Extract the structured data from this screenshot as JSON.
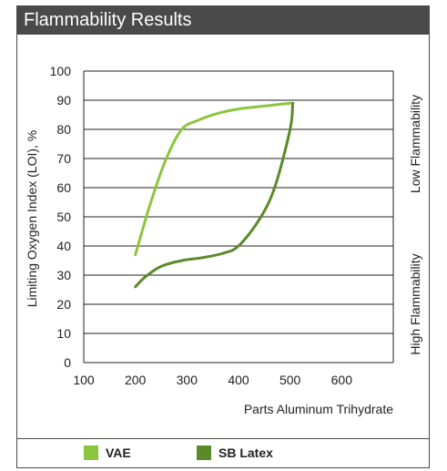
{
  "title": "Flammability Results",
  "colors": {
    "header_bg": "#4a4a4a",
    "vae": "#8cc63f",
    "sb_latex": "#5a8a2a",
    "gridline": "#222222"
  },
  "legend": [
    {
      "label": "VAE",
      "color": "#8cc63f"
    },
    {
      "label": "SB Latex",
      "color": "#5a8a2a"
    }
  ],
  "chart_data": {
    "type": "line",
    "title": "Flammability Results",
    "xlabel": "Parts Aluminum Trihydrate",
    "ylabel": "Limiting Oxygen Index (LOI), %",
    "xlim": [
      100,
      700
    ],
    "ylim": [
      0,
      100
    ],
    "x_ticks": [
      100,
      200,
      300,
      400,
      500,
      600
    ],
    "y_ticks": [
      0,
      10,
      20,
      30,
      40,
      50,
      60,
      70,
      80,
      90,
      100
    ],
    "grid": "horizontal",
    "legend_position": "bottom",
    "right_annotations": [
      "Low Flammability",
      "High Flammability"
    ],
    "series": [
      {
        "name": "VAE",
        "color": "#8cc63f",
        "points": [
          [
            200,
            37
          ],
          [
            230,
            55
          ],
          [
            260,
            70
          ],
          [
            290,
            80
          ],
          [
            320,
            83
          ],
          [
            360,
            85.5
          ],
          [
            400,
            87
          ],
          [
            450,
            88
          ],
          [
            500,
            89
          ]
        ]
      },
      {
        "name": "SB Latex",
        "color": "#5a8a2a",
        "points": [
          [
            200,
            26
          ],
          [
            220,
            29.5
          ],
          [
            250,
            33
          ],
          [
            290,
            35
          ],
          [
            330,
            36
          ],
          [
            370,
            37.5
          ],
          [
            400,
            40
          ],
          [
            440,
            49
          ],
          [
            470,
            60
          ],
          [
            500,
            80
          ],
          [
            505,
            89
          ]
        ]
      }
    ]
  }
}
